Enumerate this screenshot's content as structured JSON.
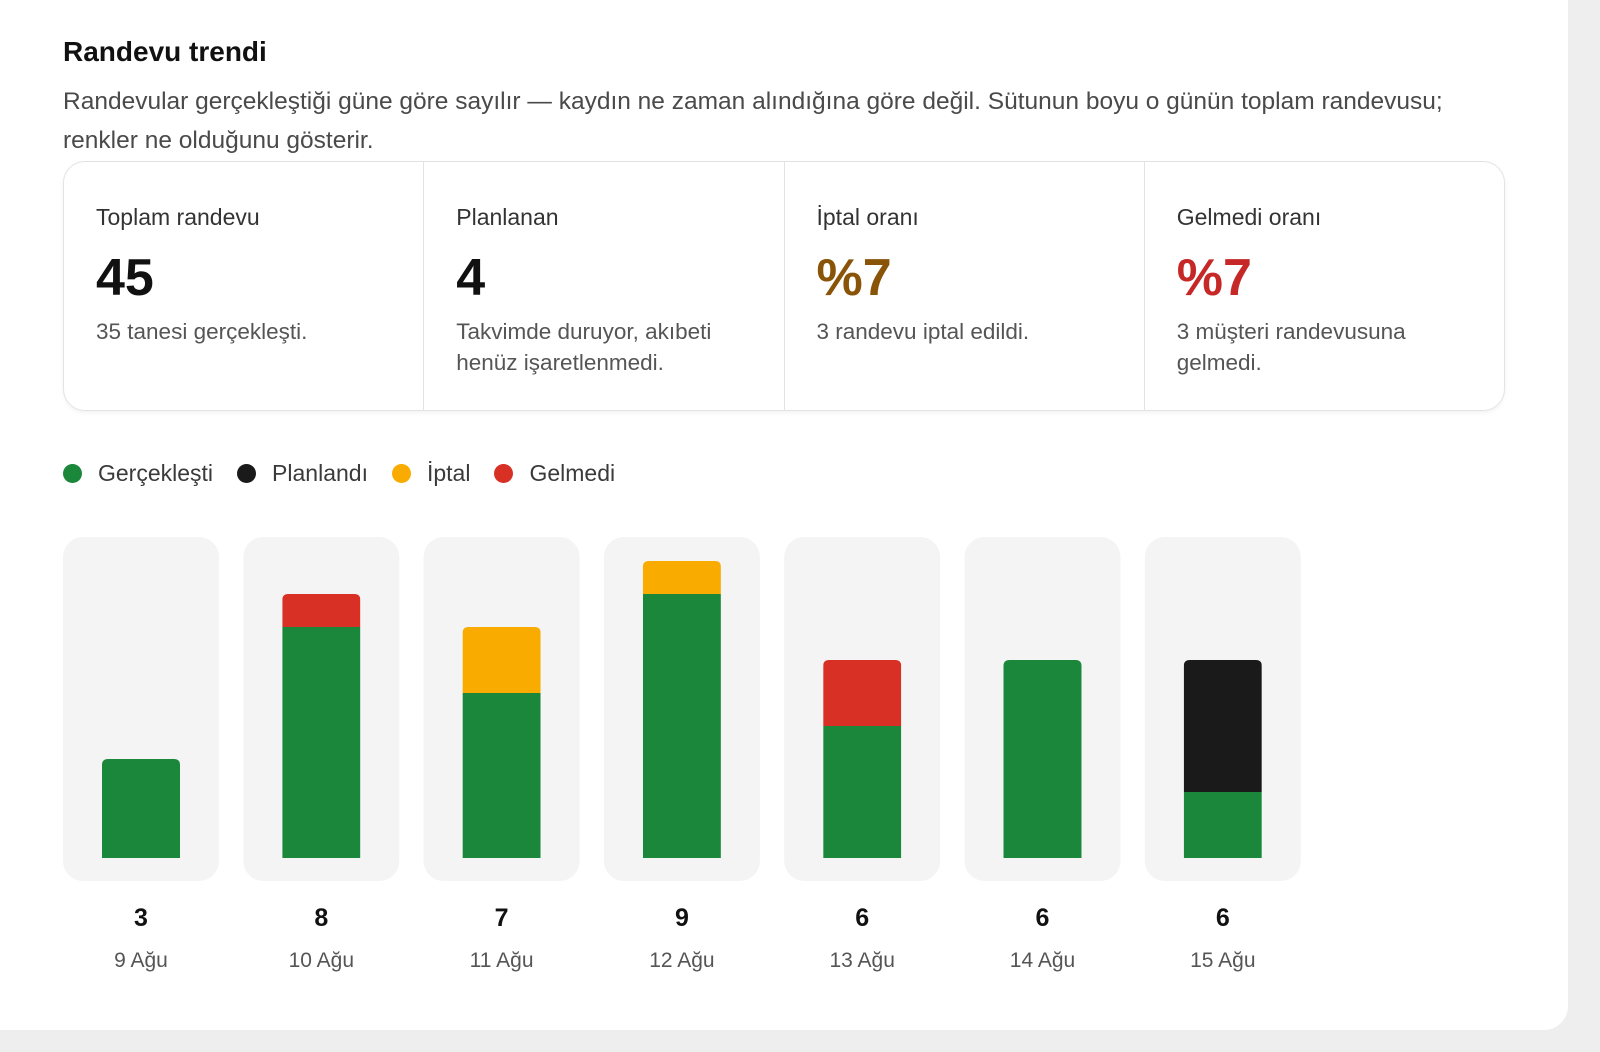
{
  "header": {
    "title": "Randevu trendi",
    "subtitle": "Randevular gerçekleştiği güne göre sayılır — kaydın ne zaman alındığına göre değil. Sütunun boyu o günün toplam randevusu; renkler ne olduğunu gösterir."
  },
  "stats": [
    {
      "label": "Toplam randevu",
      "value": "45",
      "desc": "35 tanesi gerçekleşti.",
      "color": "#111111"
    },
    {
      "label": "Planlanan",
      "value": "4",
      "desc": "Takvimde duruyor, akıbeti henüz işaretlenmedi.",
      "color": "#111111"
    },
    {
      "label": "İptal oranı",
      "value": "%7",
      "desc": "3 randevu iptal edildi.",
      "color": "#8a5408"
    },
    {
      "label": "Gelmedi oranı",
      "value": "%7",
      "desc": "3 müşteri randevusuna gelmedi.",
      "color": "#c62828"
    }
  ],
  "legend": [
    {
      "label": "Gerçekleşti",
      "color": "#1b873b"
    },
    {
      "label": "Planlandı",
      "color": "#1a1a1a"
    },
    {
      "label": "İptal",
      "color": "#f9ab00"
    },
    {
      "label": "Gelmedi",
      "color": "#d93025"
    }
  ],
  "chart_data": {
    "type": "bar",
    "stacked": true,
    "categories": [
      "9 Ağu",
      "10 Ağu",
      "11 Ağu",
      "12 Ağu",
      "13 Ağu",
      "14 Ağu",
      "15 Ağu"
    ],
    "totals": [
      "3",
      "8",
      "7",
      "9",
      "6",
      "6",
      "6"
    ],
    "ylim": [
      0,
      9
    ],
    "series": [
      {
        "name": "Gerçekleşti",
        "color": "#1b873b",
        "values": [
          3,
          7,
          5,
          8,
          4,
          6,
          2
        ]
      },
      {
        "name": "Planlandı",
        "color": "#1a1a1a",
        "values": [
          0,
          0,
          0,
          0,
          0,
          0,
          4
        ]
      },
      {
        "name": "İptal",
        "color": "#f9ab00",
        "values": [
          0,
          0,
          2,
          1,
          0,
          0,
          0
        ]
      },
      {
        "name": "Gelmedi",
        "color": "#d93025",
        "values": [
          0,
          1,
          0,
          0,
          2,
          0,
          0
        ]
      }
    ]
  }
}
